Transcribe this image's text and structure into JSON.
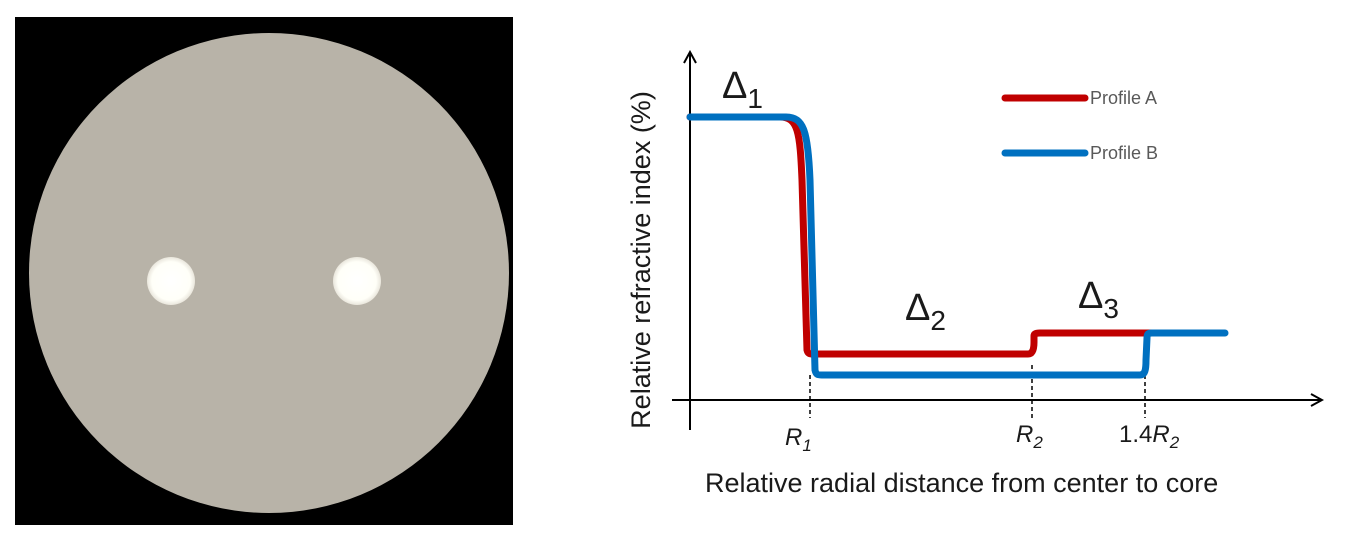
{
  "fiber_image": {
    "background_color": "#000000",
    "cladding_color": "#b8b3a8",
    "core_color": "#fffff8",
    "core_count": 2
  },
  "profile_diagram": {
    "y_axis_label": "Relative refractive index (%)",
    "x_axis_label": "Relative radial distance from center to core",
    "tick_labels": {
      "r1": {
        "base": "R",
        "sub": "1"
      },
      "r2": {
        "base": "R",
        "sub": "2"
      },
      "r3": {
        "prefix": "1.4",
        "base": "R",
        "sub": "2"
      }
    },
    "annotations": {
      "delta1": {
        "symbol": "Δ",
        "sub": "1"
      },
      "delta2": {
        "symbol": "Δ",
        "sub": "2"
      },
      "delta3": {
        "symbol": "Δ",
        "sub": "3"
      }
    },
    "legend": [
      {
        "label": "Profile A",
        "color": "#c00000"
      },
      {
        "label": "Profile B",
        "color": "#0070c0"
      }
    ]
  }
}
